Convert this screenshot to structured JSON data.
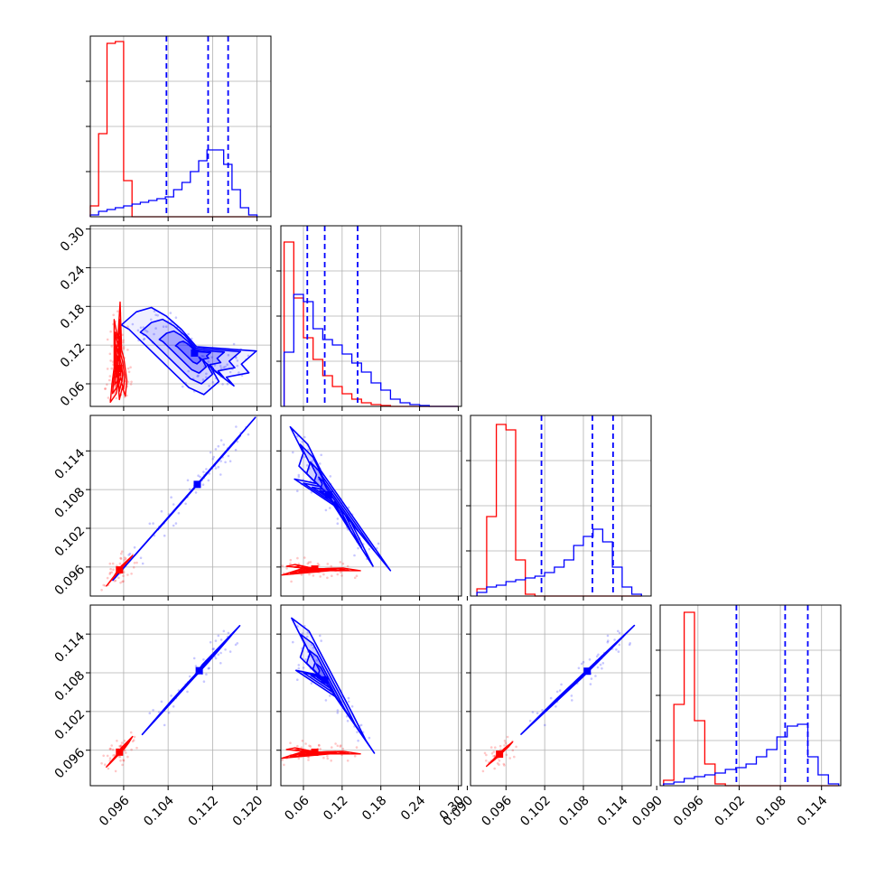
{
  "chart_data": {
    "type": "corner",
    "grid": true,
    "colors": {
      "series_a": "#ff0000",
      "series_b": "#0000ff"
    },
    "params": [
      {
        "range": [
          0.09,
          0.1225
        ],
        "ticks": [
          "0.096",
          "0.104",
          "0.112",
          "0.120"
        ]
      },
      {
        "range": [
          0.025,
          0.305
        ],
        "ticks": [
          "0.06",
          "0.12",
          "0.18",
          "0.24",
          "0.30"
        ]
      },
      {
        "range": [
          0.0905,
          0.1185
        ],
        "ticks": [
          "0.090",
          "0.096",
          "0.102",
          "0.108",
          "0.114"
        ]
      },
      {
        "range": [
          0.0905,
          0.1168
        ],
        "ticks": [
          "0.090",
          "0.096",
          "0.102",
          "0.108",
          "0.114"
        ]
      }
    ],
    "y_ticks": [
      [
        "0.06",
        "0.12",
        "0.18",
        "0.24",
        "0.30"
      ],
      [
        "0.096",
        "0.102",
        "0.108",
        "0.114"
      ],
      [
        "0.096",
        "0.102",
        "0.108",
        "0.114"
      ]
    ],
    "y_tick_values": [
      [
        0.06,
        0.12,
        0.18,
        0.24,
        0.3
      ],
      [
        0.096,
        0.102,
        0.108,
        0.114
      ],
      [
        0.096,
        0.102,
        0.108,
        0.114
      ]
    ],
    "y_ranges": [
      [
        0.025,
        0.305
      ],
      [
        0.0915,
        0.1195
      ],
      [
        0.0905,
        0.1185
      ]
    ],
    "quantiles_b": [
      [
        0.1037,
        0.1112,
        0.1148
      ],
      [
        0.066,
        0.093,
        0.144
      ],
      [
        0.1015,
        0.1094,
        0.1126
      ],
      [
        0.1016,
        0.1087,
        0.112
      ]
    ],
    "histograms": [
      {
        "bins": [
          0.09,
          0.0915,
          0.093,
          0.0945,
          0.096,
          0.0975,
          0.099,
          0.1005,
          0.102,
          0.1035,
          0.105,
          0.1065,
          0.108,
          0.1095,
          0.111,
          0.1125,
          0.114,
          0.1155,
          0.117,
          0.1185,
          0.12
        ],
        "series_a": [
          0.06,
          0.46,
          0.96,
          0.97,
          0.2,
          0,
          0,
          0,
          0,
          0,
          0,
          0,
          0,
          0,
          0,
          0,
          0,
          0,
          0,
          0
        ],
        "series_b": [
          0.01,
          0.03,
          0.04,
          0.05,
          0.06,
          0.07,
          0.08,
          0.09,
          0.1,
          0.11,
          0.15,
          0.19,
          0.25,
          0.31,
          0.37,
          0.37,
          0.29,
          0.15,
          0.05,
          0.01
        ]
      },
      {
        "bins": [
          0.03,
          0.045,
          0.06,
          0.075,
          0.09,
          0.105,
          0.12,
          0.135,
          0.15,
          0.165,
          0.18,
          0.195,
          0.21,
          0.225,
          0.24,
          0.255,
          0.27,
          0.285,
          0.3
        ],
        "series_a": [
          0.91,
          0.6,
          0.38,
          0.26,
          0.17,
          0.11,
          0.07,
          0.04,
          0.02,
          0.01,
          0.005,
          0,
          0,
          0,
          0,
          0,
          0,
          0
        ],
        "series_b": [
          0.3,
          0.62,
          0.58,
          0.43,
          0.37,
          0.34,
          0.29,
          0.24,
          0.19,
          0.13,
          0.09,
          0.04,
          0.02,
          0.01,
          0.005,
          0,
          0,
          0
        ]
      },
      {
        "bins": [
          0.0915,
          0.093,
          0.0945,
          0.096,
          0.0975,
          0.099,
          0.1005,
          0.102,
          0.1035,
          0.105,
          0.1065,
          0.108,
          0.1095,
          0.111,
          0.1125,
          0.114,
          0.1155,
          0.117
        ],
        "series_a": [
          0.04,
          0.44,
          0.95,
          0.92,
          0.2,
          0.01,
          0,
          0,
          0,
          0,
          0,
          0,
          0,
          0,
          0,
          0,
          0
        ],
        "series_b": [
          0.02,
          0.05,
          0.06,
          0.08,
          0.09,
          0.1,
          0.11,
          0.13,
          0.16,
          0.2,
          0.28,
          0.33,
          0.37,
          0.3,
          0.16,
          0.05,
          0.01
        ]
      },
      {
        "bins": [
          0.091,
          0.0925,
          0.094,
          0.0955,
          0.097,
          0.0985,
          0.1,
          0.1015,
          0.103,
          0.1045,
          0.106,
          0.1075,
          0.109,
          0.1105,
          0.112,
          0.1135,
          0.115,
          0.1165
        ],
        "series_a": [
          0.03,
          0.45,
          0.96,
          0.36,
          0.12,
          0.01,
          0,
          0,
          0,
          0,
          0,
          0,
          0,
          0,
          0,
          0,
          0
        ],
        "series_b": [
          0.01,
          0.02,
          0.04,
          0.05,
          0.06,
          0.07,
          0.09,
          0.1,
          0.12,
          0.16,
          0.2,
          0.27,
          0.33,
          0.34,
          0.16,
          0.06,
          0.01
        ]
      }
    ],
    "scatter": [
      {
        "series_a": [
          [
            0.0952,
            0.048
          ],
          [
            0.0948,
            0.055
          ],
          [
            0.0956,
            0.062
          ],
          [
            0.095,
            0.072
          ],
          [
            0.0945,
            0.085
          ],
          [
            0.0958,
            0.095
          ],
          [
            0.096,
            0.052
          ],
          [
            0.0955,
            0.105
          ],
          [
            0.0942,
            0.065
          ],
          [
            0.0962,
            0.07
          ],
          [
            0.095,
            0.118
          ],
          [
            0.0945,
            0.14
          ],
          [
            0.0953,
            0.16
          ],
          [
            0.094,
            0.045
          ]
        ],
        "series_b": [
          [
            0.112,
            0.075
          ],
          [
            0.113,
            0.08
          ],
          [
            0.111,
            0.09
          ],
          [
            0.114,
            0.07
          ],
          [
            0.109,
            0.115
          ],
          [
            0.107,
            0.135
          ],
          [
            0.105,
            0.15
          ],
          [
            0.103,
            0.16
          ],
          [
            0.101,
            0.155
          ],
          [
            0.115,
            0.095
          ],
          [
            0.116,
            0.085
          ],
          [
            0.11,
            0.06
          ],
          [
            0.108,
            0.068
          ],
          [
            0.117,
            0.11
          ],
          [
            0.1,
            0.135
          ],
          [
            0.099,
            0.14
          ]
        ]
      },
      {
        "series_a": [
          [
            0.095,
            0.0955
          ],
          [
            0.0955,
            0.096
          ],
          [
            0.096,
            0.0962
          ],
          [
            0.0945,
            0.0948
          ],
          [
            0.094,
            0.0942
          ],
          [
            0.0965,
            0.0968
          ],
          [
            0.0935,
            0.0937
          ],
          [
            0.097,
            0.0972
          ]
        ],
        "series_b": [
          [
            0.112,
            0.1115
          ],
          [
            0.113,
            0.1125
          ],
          [
            0.111,
            0.1105
          ],
          [
            0.11,
            0.1095
          ],
          [
            0.114,
            0.1135
          ],
          [
            0.109,
            0.1086
          ],
          [
            0.106,
            0.1056
          ],
          [
            0.104,
            0.1036
          ],
          [
            0.102,
            0.1017
          ],
          [
            0.115,
            0.1144
          ],
          [
            0.117,
            0.1165
          ],
          [
            0.098,
            0.0978
          ]
        ]
      },
      {
        "series_a": [
          [
            0.045,
            0.096
          ],
          [
            0.055,
            0.0962
          ],
          [
            0.065,
            0.0958
          ],
          [
            0.08,
            0.0957
          ],
          [
            0.095,
            0.0955
          ],
          [
            0.11,
            0.0958
          ],
          [
            0.13,
            0.0955
          ],
          [
            0.04,
            0.095
          ]
        ],
        "series_b": [
          [
            0.07,
            0.112
          ],
          [
            0.065,
            0.1105
          ],
          [
            0.075,
            0.113
          ],
          [
            0.06,
            0.109
          ],
          [
            0.085,
            0.1085
          ],
          [
            0.105,
            0.106
          ],
          [
            0.125,
            0.104
          ],
          [
            0.14,
            0.101
          ],
          [
            0.15,
            0.099
          ],
          [
            0.17,
            0.0985
          ],
          [
            0.055,
            0.115
          ],
          [
            0.09,
            0.11
          ]
        ]
      },
      {
        "series_a": [
          [
            0.095,
            0.0955
          ],
          [
            0.0955,
            0.0962
          ],
          [
            0.096,
            0.0962
          ],
          [
            0.0945,
            0.095
          ],
          [
            0.094,
            0.0944
          ],
          [
            0.0965,
            0.0968
          ],
          [
            0.0935,
            0.094
          ],
          [
            0.097,
            0.0975
          ]
        ],
        "series_b": [
          [
            0.112,
            0.1105
          ],
          [
            0.113,
            0.1115
          ],
          [
            0.111,
            0.1095
          ],
          [
            0.11,
            0.109
          ],
          [
            0.114,
            0.1125
          ],
          [
            0.109,
            0.1078
          ],
          [
            0.106,
            0.105
          ],
          [
            0.104,
            0.103
          ],
          [
            0.102,
            0.101
          ],
          [
            0.115,
            0.1135
          ]
        ]
      },
      {
        "series_a": [
          [
            0.045,
            0.096
          ],
          [
            0.055,
            0.0962
          ],
          [
            0.065,
            0.0958
          ],
          [
            0.08,
            0.0957
          ],
          [
            0.095,
            0.0955
          ],
          [
            0.11,
            0.0958
          ],
          [
            0.13,
            0.0955
          ],
          [
            0.04,
            0.095
          ]
        ],
        "series_b": [
          [
            0.07,
            0.111
          ],
          [
            0.065,
            0.1095
          ],
          [
            0.075,
            0.1125
          ],
          [
            0.06,
            0.108
          ],
          [
            0.085,
            0.1075
          ],
          [
            0.105,
            0.105
          ],
          [
            0.125,
            0.103
          ],
          [
            0.14,
            0.1
          ],
          [
            0.15,
            0.0985
          ],
          [
            0.055,
            0.114
          ]
        ]
      },
      {
        "series_a": [
          [
            0.095,
            0.0955
          ],
          [
            0.0955,
            0.096
          ],
          [
            0.096,
            0.0962
          ],
          [
            0.0945,
            0.0948
          ],
          [
            0.094,
            0.0944
          ],
          [
            0.0965,
            0.0968
          ],
          [
            0.0935,
            0.094
          ]
        ],
        "series_b": [
          [
            0.111,
            0.1105
          ],
          [
            0.112,
            0.1115
          ],
          [
            0.11,
            0.1095
          ],
          [
            0.109,
            0.1085
          ],
          [
            0.113,
            0.1125
          ],
          [
            0.108,
            0.1075
          ],
          [
            0.105,
            0.105
          ],
          [
            0.103,
            0.103
          ],
          [
            0.101,
            0.101
          ],
          [
            0.114,
            0.1135
          ]
        ]
      }
    ]
  }
}
